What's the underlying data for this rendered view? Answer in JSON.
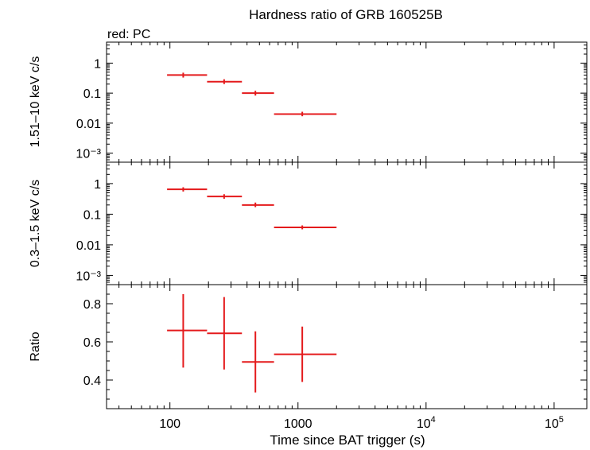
{
  "title": "Hardness ratio of GRB 160525B",
  "legend_text": "red: PC",
  "x_label": "Time since BAT trigger (s)",
  "colors": {
    "series": "#e41a1c",
    "axes": "#000000",
    "background": "#ffffff"
  },
  "chart_data": [
    {
      "type": "scatter",
      "panel": "top",
      "ylabel": "1.51–10 keV c/s",
      "log_y": true,
      "ylim": [
        0.0005,
        5
      ],
      "y_ticks": [
        {
          "v": 1,
          "label": "1"
        },
        {
          "v": 0.1,
          "label": "0.1"
        },
        {
          "v": 0.01,
          "label": "0.01"
        },
        {
          "v": 0.001,
          "label": "10⁻³"
        }
      ],
      "series": [
        {
          "points": [
            {
              "x": 127,
              "xlo": 95,
              "xhi": 195,
              "y": 0.4,
              "ylo": 0.33,
              "yhi": 0.48
            },
            {
              "x": 265,
              "xlo": 195,
              "xhi": 365,
              "y": 0.24,
              "ylo": 0.2,
              "yhi": 0.29
            },
            {
              "x": 465,
              "xlo": 365,
              "xhi": 650,
              "y": 0.1,
              "ylo": 0.083,
              "yhi": 0.12
            },
            {
              "x": 1080,
              "xlo": 650,
              "xhi": 2000,
              "y": 0.02,
              "ylo": 0.017,
              "yhi": 0.024
            }
          ]
        }
      ]
    },
    {
      "type": "scatter",
      "panel": "middle",
      "ylabel": "0.3–1.5 keV c/s",
      "log_y": true,
      "ylim": [
        0.0005,
        5
      ],
      "y_ticks": [
        {
          "v": 1,
          "label": "1"
        },
        {
          "v": 0.1,
          "label": "0.1"
        },
        {
          "v": 0.01,
          "label": "0.01"
        },
        {
          "v": 0.001,
          "label": "10⁻³"
        }
      ],
      "series": [
        {
          "points": [
            {
              "x": 127,
              "xlo": 95,
              "xhi": 195,
              "y": 0.65,
              "ylo": 0.55,
              "yhi": 0.76
            },
            {
              "x": 265,
              "xlo": 195,
              "xhi": 365,
              "y": 0.38,
              "ylo": 0.32,
              "yhi": 0.45
            },
            {
              "x": 465,
              "xlo": 365,
              "xhi": 650,
              "y": 0.2,
              "ylo": 0.17,
              "yhi": 0.24
            },
            {
              "x": 1080,
              "xlo": 650,
              "xhi": 2000,
              "y": 0.037,
              "ylo": 0.032,
              "yhi": 0.043
            }
          ]
        }
      ]
    },
    {
      "type": "scatter",
      "panel": "bottom",
      "ylabel": "Ratio",
      "log_y": false,
      "ylim": [
        0.25,
        0.9
      ],
      "y_ticks": [
        {
          "v": 0.8,
          "label": "0.8"
        },
        {
          "v": 0.6,
          "label": "0.6"
        },
        {
          "v": 0.4,
          "label": "0.4"
        }
      ],
      "y_minor_step": 0.05,
      "series": [
        {
          "points": [
            {
              "x": 127,
              "xlo": 95,
              "xhi": 195,
              "y": 0.66,
              "ylo": 0.465,
              "yhi": 0.85
            },
            {
              "x": 265,
              "xlo": 195,
              "xhi": 365,
              "y": 0.645,
              "ylo": 0.455,
              "yhi": 0.835
            },
            {
              "x": 465,
              "xlo": 365,
              "xhi": 650,
              "y": 0.495,
              "ylo": 0.335,
              "yhi": 0.655
            },
            {
              "x": 1080,
              "xlo": 650,
              "xhi": 2000,
              "y": 0.535,
              "ylo": 0.39,
              "yhi": 0.68
            }
          ]
        }
      ]
    }
  ],
  "x_axis": {
    "log": true,
    "xlim": [
      32,
      180000
    ],
    "ticks": [
      {
        "v": 100,
        "base": "100",
        "sup": ""
      },
      {
        "v": 1000,
        "base": "1000",
        "sup": ""
      },
      {
        "v": 10000,
        "base": "10",
        "sup": "4"
      },
      {
        "v": 100000,
        "base": "10",
        "sup": "5"
      }
    ]
  }
}
